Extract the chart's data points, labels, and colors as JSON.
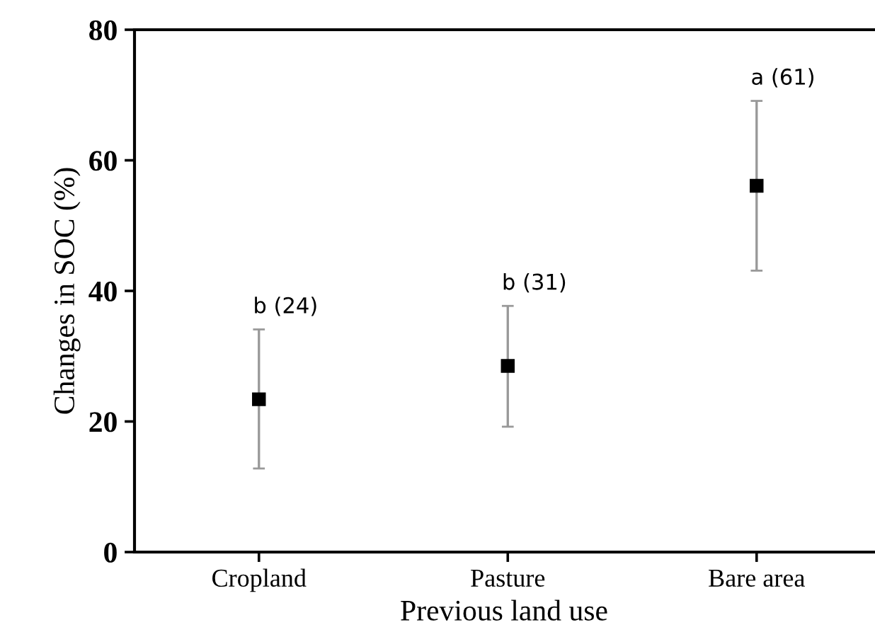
{
  "chart_data": {
    "type": "scatter",
    "xlabel": "Previous land use",
    "ylabel": "Changes in SOC (%)",
    "categories": [
      "Cropland",
      "Pasture",
      "Bare area"
    ],
    "series": [
      {
        "color": "#000000",
        "values": [
          23.4,
          28.5,
          56.1
        ],
        "errors": [
          [
            12.8,
            34.1
          ],
          [
            19.2,
            37.7
          ],
          [
            43.1,
            69.1
          ]
        ]
      }
    ],
    "ylim": [
      0,
      80
    ],
    "yticks": [
      0,
      20,
      40,
      60,
      80
    ],
    "marker": "square",
    "grid": false,
    "legend": false,
    "annotations": [
      "b (24)",
      "b (31)",
      "a (61)"
    ]
  }
}
